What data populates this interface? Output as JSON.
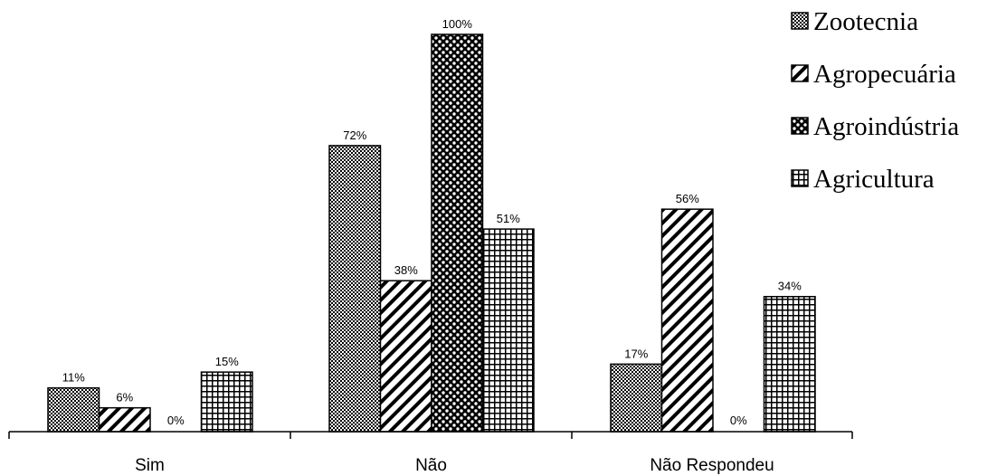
{
  "chart_data": {
    "type": "bar",
    "categories": [
      "Sim",
      "Não",
      "Não Respondeu"
    ],
    "series": [
      {
        "name": "Zootecnia",
        "values": [
          11,
          72,
          17
        ],
        "labels": [
          "11%",
          "72%",
          "17%"
        ],
        "pattern": "dots-fine"
      },
      {
        "name": "Agropecuária",
        "values": [
          6,
          38,
          56
        ],
        "labels": [
          "6%",
          "38%",
          "56%"
        ],
        "pattern": "diagonal"
      },
      {
        "name": "Agroindústria",
        "values": [
          0,
          100,
          0
        ],
        "labels": [
          "0%",
          "100%",
          "0%"
        ],
        "pattern": "dots-bold"
      },
      {
        "name": "Agricultura",
        "values": [
          15,
          51,
          34
        ],
        "labels": [
          "15%",
          "51%",
          "34%"
        ],
        "pattern": "grid"
      }
    ],
    "ylim": [
      0,
      100
    ],
    "grid": false,
    "legend_position": "top-right",
    "colors": {
      "fill": "#ffffff",
      "stroke": "#000000"
    }
  }
}
